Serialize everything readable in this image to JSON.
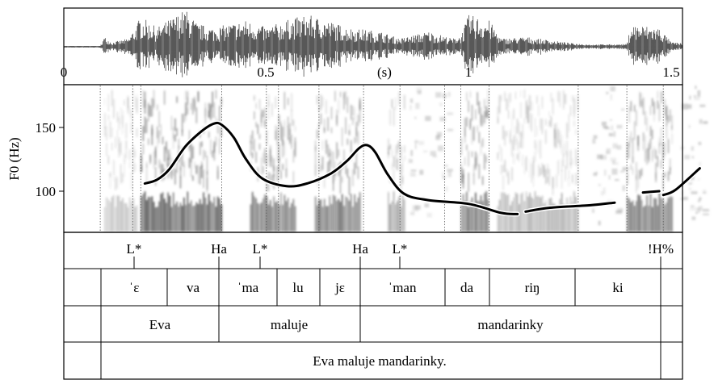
{
  "time_axis": {
    "unit_label": "(s)",
    "tick_labels": [
      "0",
      "0.5",
      "1",
      "1.5"
    ]
  },
  "f0_axis": {
    "label": "F0 (Hz)",
    "tick_labels": [
      "150",
      "100"
    ]
  },
  "tones": {
    "labels": [
      "L*",
      "Ha",
      "L*",
      "Ha",
      "L*",
      "!H%"
    ]
  },
  "syllables": {
    "labels": [
      "ˈɛ",
      "va",
      "ˈma",
      "lu",
      "jɛ",
      "ˈman",
      "da",
      "riŋ",
      "ki"
    ]
  },
  "words": {
    "labels": [
      "Eva",
      "maluje",
      "mandarinky"
    ]
  },
  "sentence": {
    "label": "Eva maluje mandarinky."
  },
  "chart_data": {
    "type": "line",
    "x_unit": "s",
    "y_unit": "Hz",
    "xlim": [
      0,
      1.6
    ],
    "ylim": [
      65,
      185
    ],
    "series": [
      {
        "values": [
          [
            0.2,
            106
          ],
          [
            0.23,
            109
          ],
          [
            0.26,
            117
          ],
          [
            0.3,
            135
          ],
          [
            0.34,
            147
          ],
          [
            0.37,
            153
          ],
          [
            0.39,
            152
          ],
          [
            0.42,
            142
          ],
          [
            0.45,
            125
          ],
          [
            0.49,
            110
          ],
          [
            0.55,
            104
          ],
          [
            0.6,
            106
          ],
          [
            0.66,
            114
          ],
          [
            0.7,
            124
          ],
          [
            0.73,
            134
          ],
          [
            0.75,
            136
          ],
          [
            0.77,
            130
          ],
          [
            0.8,
            113
          ],
          [
            0.84,
            98
          ],
          [
            0.9,
            93
          ],
          [
            1.0,
            90
          ],
          [
            1.08,
            83
          ],
          [
            1.12,
            82
          ]
        ]
      },
      {
        "values": [
          [
            1.14,
            84
          ],
          [
            1.2,
            87
          ],
          [
            1.3,
            89
          ],
          [
            1.36,
            91
          ]
        ]
      },
      {
        "values": [
          [
            1.43,
            99
          ],
          [
            1.47,
            100
          ]
        ]
      },
      {
        "values": [
          [
            1.48,
            97
          ],
          [
            1.51,
            101
          ],
          [
            1.57,
            118
          ]
        ]
      }
    ]
  },
  "colors": {
    "frame": "#000000",
    "boundary": "#666666",
    "spectrogram_dark": "#3a3a3a"
  }
}
